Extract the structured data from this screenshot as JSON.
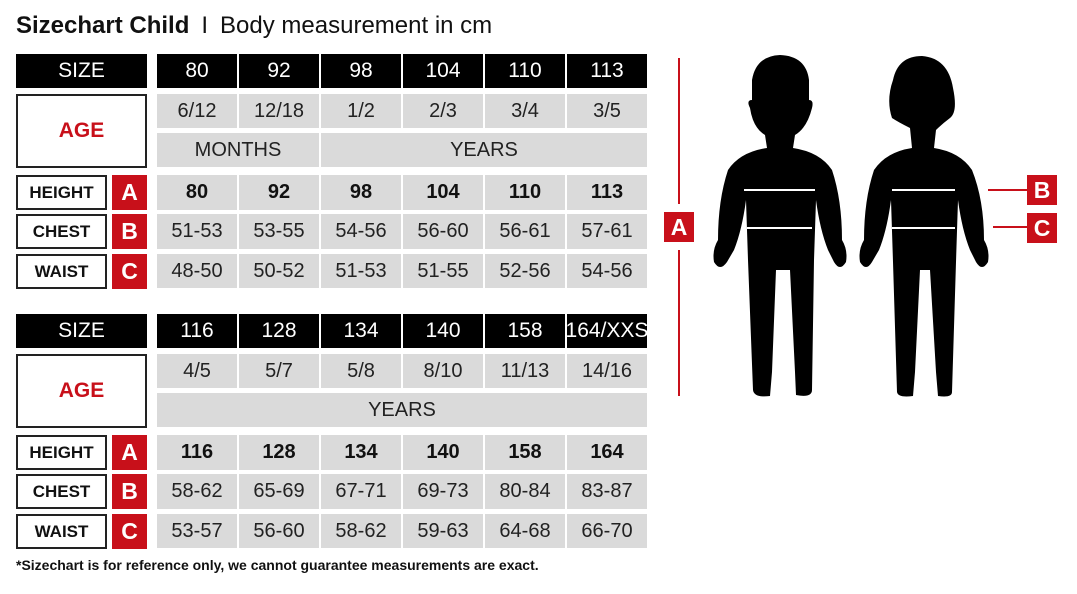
{
  "title": {
    "main": "Sizechart Child",
    "separator": "I",
    "sub": "Body measurement in cm"
  },
  "labels": {
    "size": "SIZE",
    "age": "AGE",
    "height": "HEIGHT",
    "chest": "CHEST",
    "waist": "WAIST",
    "a": "A",
    "b": "B",
    "c": "C"
  },
  "tables": [
    {
      "sizes": [
        "80",
        "92",
        "98",
        "104",
        "110",
        "113"
      ],
      "ages": [
        "6/12",
        "12/18",
        "1/2",
        "2/3",
        "3/4",
        "3/5"
      ],
      "age_units": [
        {
          "label": "MONTHS",
          "span": 2
        },
        {
          "label": "YEARS",
          "span": 4
        }
      ],
      "height": [
        "80",
        "92",
        "98",
        "104",
        "110",
        "113"
      ],
      "chest": [
        "51-53",
        "53-55",
        "54-56",
        "56-60",
        "56-61",
        "57-61"
      ],
      "waist": [
        "48-50",
        "50-52",
        "51-53",
        "51-55",
        "52-56",
        "54-56"
      ]
    },
    {
      "sizes": [
        "116",
        "128",
        "134",
        "140",
        "158",
        "164/XXS"
      ],
      "ages": [
        "4/5",
        "5/7",
        "5/8",
        "8/10",
        "11/13",
        "14/16"
      ],
      "age_units": [
        {
          "label": "YEARS",
          "span": 6
        }
      ],
      "height": [
        "116",
        "128",
        "134",
        "140",
        "158",
        "164"
      ],
      "chest": [
        "58-62",
        "65-69",
        "67-71",
        "69-73",
        "80-84",
        "83-87"
      ],
      "waist": [
        "53-57",
        "56-60",
        "58-62",
        "59-63",
        "64-68",
        "66-70"
      ]
    }
  ],
  "diagram": {
    "markers": [
      "A",
      "B",
      "C"
    ]
  },
  "footnote": "*Sizechart is for reference only, we cannot guarantee measurements are exact.",
  "colors": {
    "accent": "#c8101a",
    "header": "#000000",
    "cell": "#dadada"
  }
}
